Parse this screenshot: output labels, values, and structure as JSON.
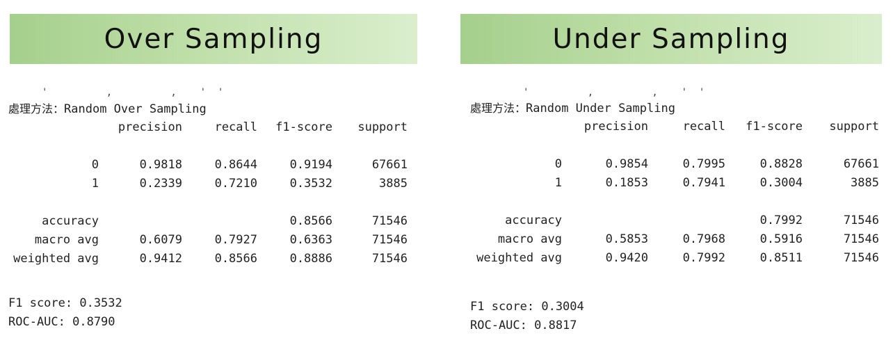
{
  "panels": [
    {
      "title": "Over Sampling",
      "method_label": "處理方法：",
      "method_value": "Random Over Sampling",
      "headers": [
        "precision",
        "recall",
        "f1-score",
        "support"
      ],
      "class_rows": [
        {
          "label": "0",
          "precision": "0.9818",
          "recall": "0.8644",
          "f1": "0.9194",
          "support": "67661"
        },
        {
          "label": "1",
          "precision": "0.2339",
          "recall": "0.7210",
          "f1": "0.3532",
          "support": "3885"
        }
      ],
      "summary_rows": [
        {
          "label": "accuracy",
          "precision": "",
          "recall": "",
          "f1": "0.8566",
          "support": "71546"
        },
        {
          "label": "macro avg",
          "precision": "0.6079",
          "recall": "0.7927",
          "f1": "0.6363",
          "support": "71546"
        },
        {
          "label": "weighted avg",
          "precision": "0.9412",
          "recall": "0.8566",
          "f1": "0.8886",
          "support": "71546"
        }
      ],
      "f1_score": "F1 score: 0.3532",
      "roc_auc": "ROC-AUC: 0.8790"
    },
    {
      "title": "Under Sampling",
      "method_label": "處理方法：",
      "method_value": "Random Under Sampling",
      "headers": [
        "precision",
        "recall",
        "f1-score",
        "support"
      ],
      "class_rows": [
        {
          "label": "0",
          "precision": "0.9854",
          "recall": "0.7995",
          "f1": "0.8828",
          "support": "67661"
        },
        {
          "label": "1",
          "precision": "0.1853",
          "recall": "0.7941",
          "f1": "0.3004",
          "support": "3885"
        }
      ],
      "summary_rows": [
        {
          "label": "accuracy",
          "precision": "",
          "recall": "",
          "f1": "0.7992",
          "support": "71546"
        },
        {
          "label": "macro avg",
          "precision": "0.5853",
          "recall": "0.7968",
          "f1": "0.5916",
          "support": "71546"
        },
        {
          "label": "weighted avg",
          "precision": "0.9420",
          "recall": "0.7992",
          "f1": "0.8511",
          "support": "71546"
        }
      ],
      "f1_score": "F1 score: 0.3004",
      "roc_auc": "ROC-AUC: 0.8817"
    }
  ]
}
